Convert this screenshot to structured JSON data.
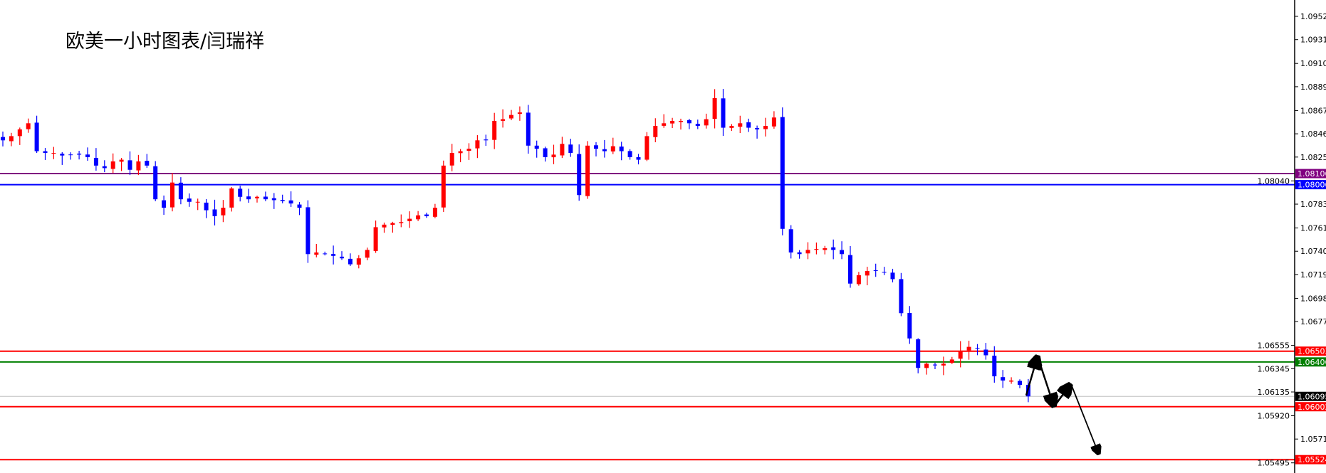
{
  "chart_data": {
    "type": "candlestick",
    "title": "欧美一小时图表/闫瑞祥",
    "colors": {
      "up": "#ff0000",
      "down": "#0000ff",
      "background": "#ffffff",
      "axis": "#000000"
    },
    "ylim": [
      1.054,
      1.0966
    ],
    "y_ticks": [
      "1.09525",
      "1.09315",
      "1.09100",
      "1.08890",
      "1.08675",
      "1.08465",
      "1.08255",
      "1.08040",
      "1.07830",
      "1.07615",
      "1.07405",
      "1.07195",
      "1.06980",
      "1.06770",
      "1.06555",
      "1.06345",
      "1.06135",
      "1.05920",
      "1.05710",
      "1.05495"
    ],
    "closes": [
      1.08406,
      1.08444,
      1.08505,
      1.0856,
      1.08308,
      1.08292,
      1.08292,
      1.08269,
      1.08277,
      1.08277,
      1.08254,
      1.08178,
      1.08155,
      1.08216,
      1.08231,
      1.0814,
      1.08216,
      1.08178,
      1.07874,
      1.07798,
      1.08025,
      1.07874,
      1.07851,
      1.07851,
      1.07775,
      1.07722,
      1.07798,
      1.07972,
      1.07896,
      1.07874,
      1.07896,
      1.07874,
      1.07866,
      1.07858,
      1.07836,
      1.07798,
      1.07379,
      1.07394,
      1.07379,
      1.07363,
      1.07341,
      1.07287,
      1.07341,
      1.07417,
      1.07622,
      1.07645,
      1.0766,
      1.07668,
      1.07698,
      1.07729,
      1.07722,
      1.07798,
      1.08178,
      1.08292,
      1.08308,
      1.0833,
      1.08406,
      1.08406,
      1.08581,
      1.08597,
      1.08635,
      1.08658,
      1.08358,
      1.0833,
      1.08254,
      1.08277,
      1.08374,
      1.08292,
      1.07912,
      1.08358,
      1.0833,
      1.08308,
      1.08353,
      1.08308,
      1.08254,
      1.08231,
      1.08444,
      1.08536,
      1.0856,
      1.08581,
      1.08581,
      1.0856,
      1.08536,
      1.08597,
      1.08787,
      1.0852,
      1.08536,
      1.0856,
      1.0852,
      1.08505,
      1.08536,
      1.08612,
      1.07607,
      1.07394,
      1.07379,
      1.07417,
      1.07425,
      1.07432,
      1.07417,
      1.07379,
      1.07113,
      1.07189,
      1.07227,
      1.07227,
      1.07212,
      1.07153,
      1.06846,
      1.06618,
      1.06352,
      1.0639,
      1.06375,
      1.0639,
      1.06428,
      1.06504,
      1.06542,
      1.06526,
      1.06466,
      1.06276,
      1.06238,
      1.06238,
      1.06199,
      1.06095
    ],
    "levels": [
      {
        "value": "1.08106",
        "color": "#800080"
      },
      {
        "value": "1.08006",
        "color": "#0000ff"
      },
      {
        "value": "1.06503",
        "color": "#ff0000"
      },
      {
        "value": "1.06406",
        "color": "#008000"
      },
      {
        "value": "1.06095",
        "color": "#000000",
        "line_color": "#c0c0c0",
        "current": true
      },
      {
        "value": "1.06002",
        "color": "#ff0000"
      },
      {
        "value": "1.05524",
        "color": "#ff0000"
      }
    ]
  }
}
